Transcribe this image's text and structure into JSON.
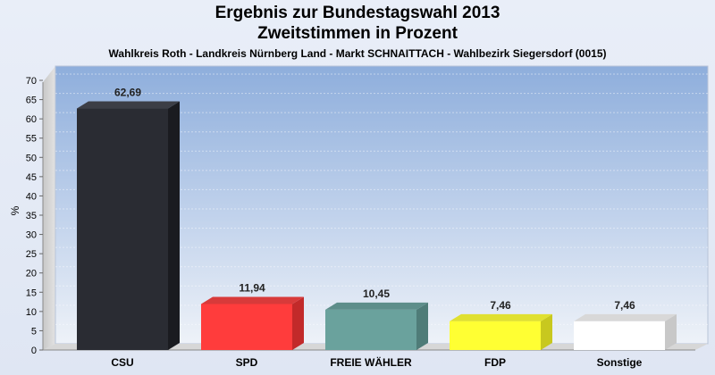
{
  "chart_data": {
    "type": "bar",
    "title": "Ergebnis zur Bundestagswahl 2013",
    "title2": "Zweitstimmen in Prozent",
    "subtitle": "Wahlkreis Roth - Landkreis Nürnberg Land - Markt SCHNAITTACH - Wahlbezirk Siegersdorf (0015)",
    "ylabel": "%",
    "xlabel": "",
    "ylim": [
      0,
      70
    ],
    "yticks": [
      "0",
      "5",
      "10",
      "15",
      "20",
      "25",
      "30",
      "35",
      "40",
      "45",
      "50",
      "55",
      "60",
      "65",
      "70"
    ],
    "grid": true,
    "categories": [
      "CSU",
      "SPD",
      "FREIE WÄHLER",
      "FDP",
      "Sonstige"
    ],
    "values": [
      62.69,
      11.94,
      10.45,
      7.46,
      7.46
    ],
    "value_labels": [
      "62,69",
      "11,94",
      "10,45",
      "7,46",
      "7,46"
    ],
    "colors": [
      "#2a2c33",
      "#ff3c3c",
      "#6aa29d",
      "#ffff33",
      "#ffffff"
    ],
    "side_colors": [
      "#1a1b20",
      "#c22a2a",
      "#4f7c78",
      "#c8c81f",
      "#c8c8c8"
    ],
    "top_colors": [
      "#3c3e46",
      "#d83a3a",
      "#5e8e8a",
      "#e0e030",
      "#d8d8d8"
    ]
  }
}
